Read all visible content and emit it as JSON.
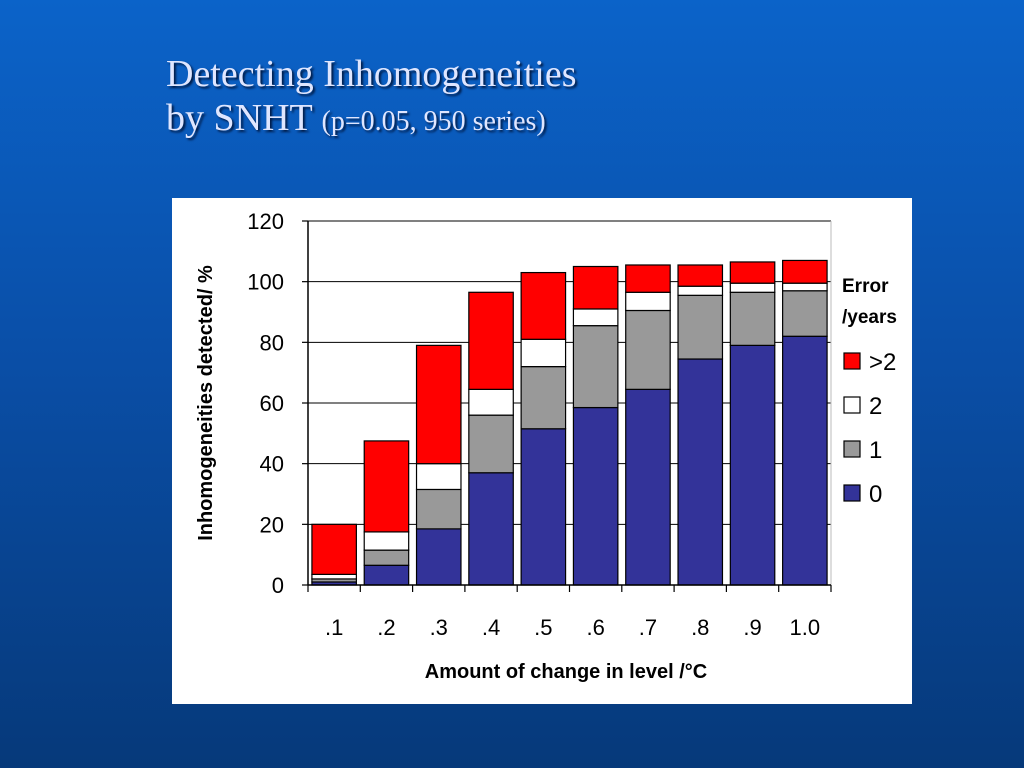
{
  "title": {
    "line1": "Detecting Inhomogeneities",
    "line2_main": "by SNHT",
    "line2_sub": "(p=0.05, 950 series)"
  },
  "chart_data": {
    "type": "bar",
    "stacked": true,
    "categories": [
      ".1",
      ".2",
      ".3",
      ".4",
      ".5",
      ".6",
      ".7",
      ".8",
      ".9",
      "1.0"
    ],
    "series": [
      {
        "name": "0",
        "color": "#333399",
        "values": [
          1,
          6.5,
          18.5,
          37,
          51.5,
          58.5,
          64.5,
          74.5,
          79,
          82
        ]
      },
      {
        "name": "1",
        "color": "#999999",
        "values": [
          1,
          5,
          13,
          19,
          20.5,
          27,
          26,
          21,
          17.5,
          15
        ]
      },
      {
        "name": "2",
        "color": "#ffffff",
        "values": [
          1.5,
          6,
          8.5,
          8.5,
          9,
          5.5,
          6,
          3,
          3,
          2.5
        ]
      },
      {
        "name": ">2",
        "color": "#ff0000",
        "values": [
          16.5,
          30,
          39,
          32,
          22,
          14,
          9,
          7,
          7,
          7.5
        ]
      }
    ],
    "xlabel": "Amount of change in level /°C",
    "ylabel": "Inhomogeneities detected/ %",
    "ylim": [
      0,
      120
    ],
    "yticks": [
      0,
      20,
      40,
      60,
      80,
      100,
      120
    ],
    "grid": true,
    "legend": {
      "title_line1": "Error",
      "title_line2": "/years",
      "placement": "right"
    }
  }
}
